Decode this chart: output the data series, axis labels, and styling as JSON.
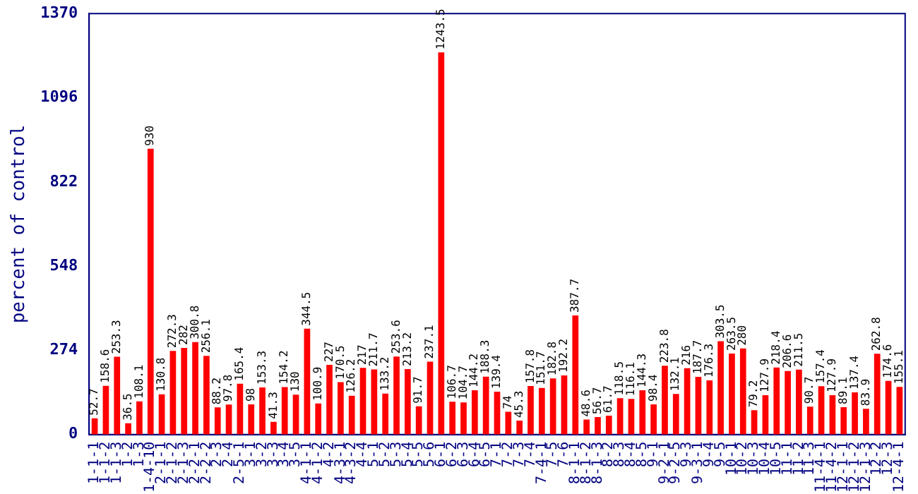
{
  "chart_data": {
    "type": "bar",
    "ylabel": "percent of control",
    "categories": [
      "1-1-1",
      "1-1-2",
      "1-1-3",
      "1-2",
      "1-3",
      "1-4-10",
      "2-1-1",
      "2-1-2",
      "2-1-3",
      "2-2-1",
      "2-2-2",
      "2-3",
      "2-4",
      "2-5-1",
      "3-1",
      "3-2",
      "3-3",
      "3-4",
      "3-5",
      "4-1-1",
      "4-1-2",
      "4-2",
      "4-3-1",
      "4-3-2",
      "4-4",
      "5-1",
      "5-2",
      "5-3",
      "5-4",
      "5-5",
      "5-6",
      "6-1",
      "6-2",
      "6-3",
      "6-4",
      "6-5",
      "7-1",
      "7-2",
      "7-3",
      "7-4",
      "7-4-1",
      "7-5",
      "7-6",
      "8-1-1",
      "8-1-2",
      "8-1-3",
      "8-2",
      "8-3",
      "8-4",
      "8-5",
      "9-1",
      "9-2-1",
      "9-2-5",
      "9-3",
      "9-3-1",
      "9-4",
      "9-5",
      "10-1",
      "10-2",
      "10-3",
      "10-4",
      "10-5",
      "11-1",
      "11-2",
      "11-3",
      "11-4-1",
      "11-4-2",
      "12-1-1",
      "12-1-2",
      "12-1-3",
      "12-2",
      "12-3",
      "12-4-1"
    ],
    "values": [
      52.7,
      158.6,
      253.3,
      36.5,
      108.1,
      930,
      130.8,
      272.3,
      282,
      300.8,
      256.1,
      88.2,
      97.8,
      165.4,
      98,
      153.3,
      41.3,
      154.2,
      130,
      344.5,
      100.9,
      227,
      170.5,
      126.2,
      217,
      211.7,
      133.2,
      253.6,
      213.2,
      91.7,
      237.1,
      1243.5,
      106.7,
      104.7,
      144.2,
      188.3,
      139.4,
      74,
      45.3,
      157.8,
      151.7,
      182.8,
      192.2,
      387.7,
      48.6,
      56.7,
      61.7,
      118.5,
      116.1,
      144.3,
      98.4,
      223.8,
      132.1,
      216,
      187.7,
      176.3,
      303.5,
      263.5,
      280,
      79.2,
      127.9,
      218.4,
      206.6,
      211.5,
      90.7,
      157.4,
      127.9,
      89.1,
      137.4,
      83.9,
      262.8,
      174.6,
      155.1
    ],
    "color": "#ff0000",
    "ylim": [
      0,
      1370
    ],
    "yticks": [
      0,
      274,
      548,
      822,
      1096,
      1370
    ],
    "grid": false,
    "legend": false,
    "data_labels": true
  }
}
